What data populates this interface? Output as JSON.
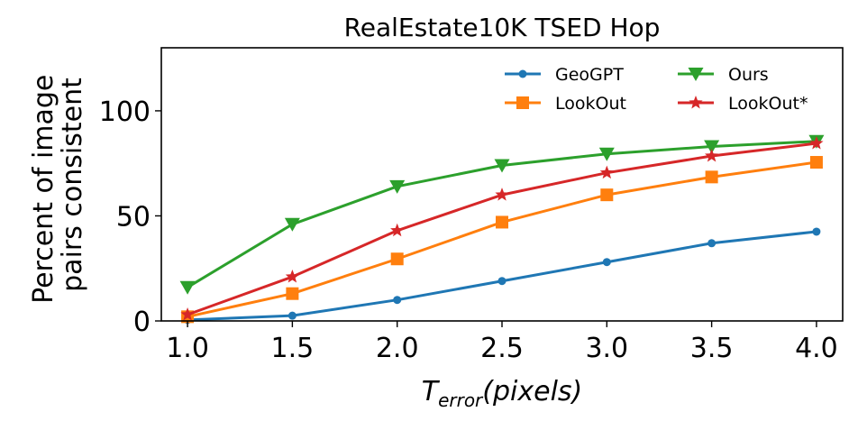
{
  "chart_data": {
    "type": "line",
    "title": "RealEstate10K TSED Hop",
    "xlabel_main": "T",
    "xlabel_sub": "error",
    "xlabel_rest": "(pixels)",
    "ylabel_lines": [
      "Percent of image",
      "pairs consistent"
    ],
    "x": [
      1.0,
      1.5,
      2.0,
      2.5,
      3.0,
      3.5,
      4.0
    ],
    "x_tick_labels": [
      "1.0",
      "1.5",
      "2.0",
      "2.5",
      "3.0",
      "3.5",
      "4.0"
    ],
    "y_ticks": [
      0,
      50,
      100
    ],
    "y_tick_labels": [
      "0",
      "50",
      "100"
    ],
    "xlim": [
      0.875,
      4.125
    ],
    "ylim": [
      0,
      130
    ],
    "grid": false,
    "legend_placement": "top-right",
    "series": [
      {
        "name": "GeoGPT",
        "color": "#1f77b4",
        "marker": "circle",
        "values": [
          0.5,
          2.5,
          10,
          19,
          28,
          37,
          42.5
        ]
      },
      {
        "name": "LookOut",
        "color": "#ff7f0e",
        "marker": "square",
        "values": [
          2,
          13,
          29.5,
          47,
          60,
          68.5,
          75.5
        ]
      },
      {
        "name": "Ours",
        "color": "#2ca02c",
        "marker": "triangle-down",
        "values": [
          16,
          46,
          64,
          74,
          79.5,
          83,
          85.5
        ]
      },
      {
        "name": "LookOut*",
        "color": "#d62728",
        "marker": "star",
        "values": [
          3,
          21,
          43,
          60,
          70.5,
          78.5,
          84.5
        ]
      }
    ]
  }
}
